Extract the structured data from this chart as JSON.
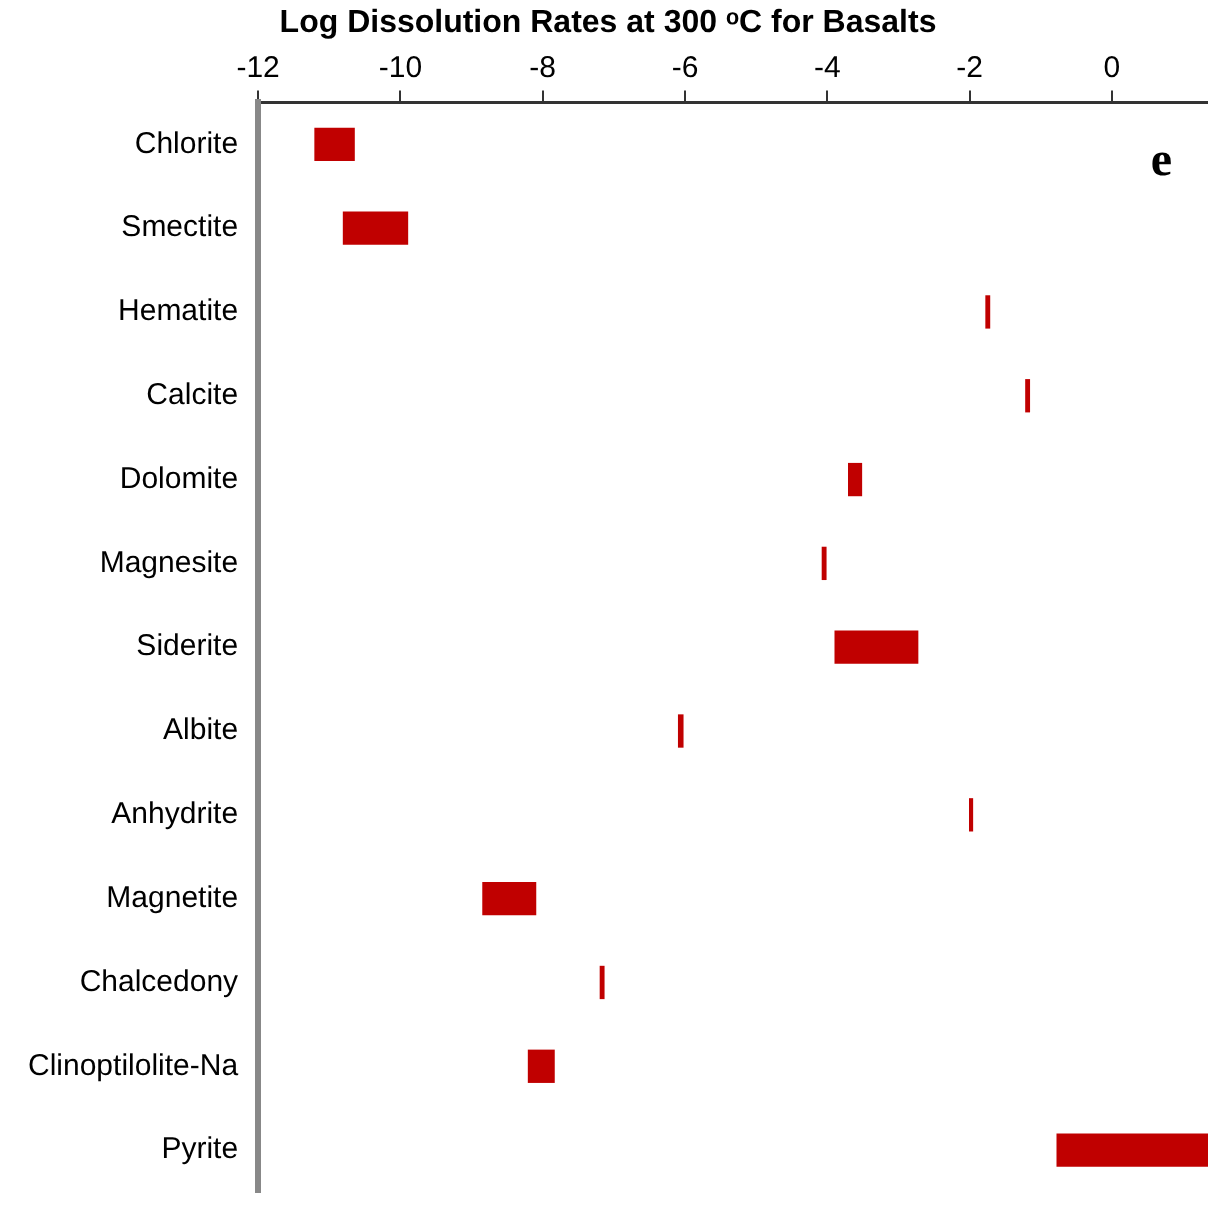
{
  "chart_data": {
    "type": "bar",
    "orientation": "horizontal",
    "title": "Log Dissolution Rates at 300 ᵒC for Basalts",
    "categories": [
      "Chlorite",
      "Smectite",
      "Hematite",
      "Calcite",
      "Dolomite",
      "Magnesite",
      "Siderite",
      "Albite",
      "Anhydrite",
      "Magnetite",
      "Chalcedony",
      "Clinoptilolite-Na",
      "Pyrite"
    ],
    "base": [
      -11.2,
      -10.8,
      -1.77,
      -1.21,
      -3.7,
      -4.07,
      -3.89,
      -6.09,
      -2.0,
      -8.84,
      -7.19,
      -8.2,
      -0.77
    ],
    "values": [
      0.55,
      0.9,
      0.05,
      0.05,
      0.18,
      0.05,
      1.16,
      0.06,
      0.04,
      0.74,
      0.05,
      0.36,
      2.12
    ],
    "color": "#c00000",
    "xlim": [
      -12,
      1.35
    ],
    "xticks": [
      -12,
      -10,
      -8,
      -6,
      -4,
      -2,
      0
    ],
    "grid": false,
    "legend": false,
    "annotations": [
      "e"
    ]
  }
}
